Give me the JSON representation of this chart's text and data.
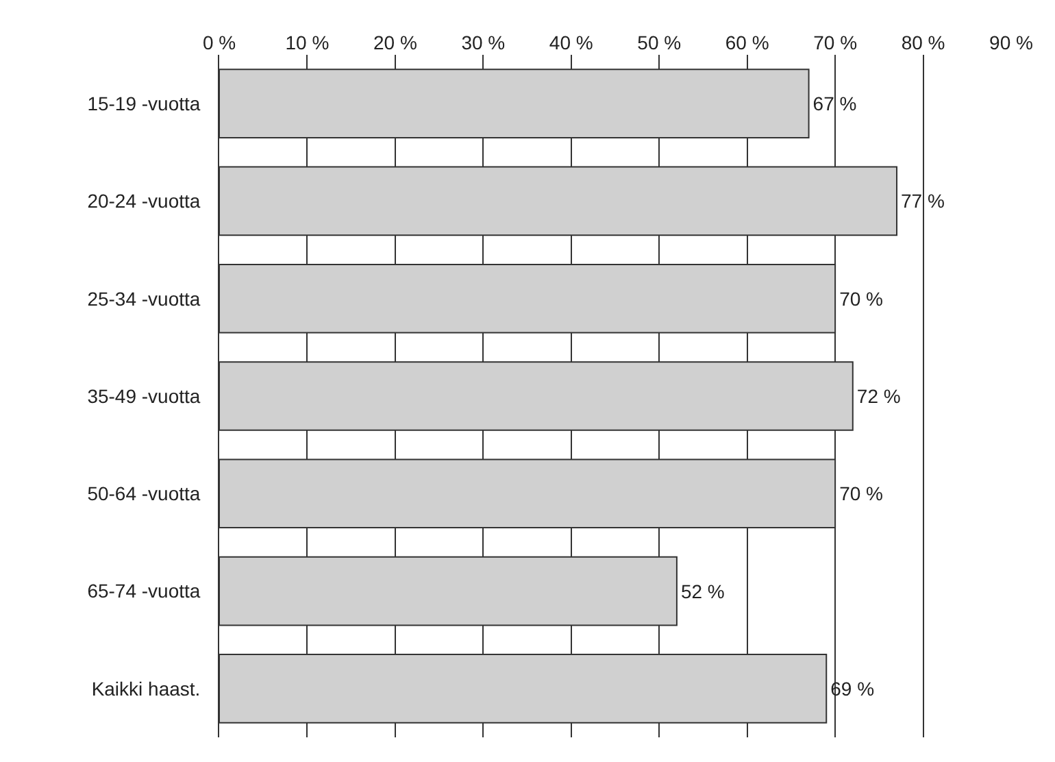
{
  "chart_data": {
    "type": "bar",
    "orientation": "horizontal",
    "categories": [
      "15-19 -vuotta",
      "20-24 -vuotta",
      "25-34 -vuotta",
      "35-49 -vuotta",
      "50-64 -vuotta",
      "65-74 -vuotta",
      "Kaikki haast."
    ],
    "values": [
      67,
      77,
      70,
      72,
      70,
      52,
      69
    ],
    "color": "#d0d0d0",
    "value_labels": [
      "67 %",
      "77 %",
      "70 %",
      "72 %",
      "70 %",
      "52 %",
      "69 %"
    ],
    "xlim": [
      0,
      90
    ],
    "xticks": [
      {
        "value": 0,
        "label": "0 %"
      },
      {
        "value": 10,
        "label": "10 %"
      },
      {
        "value": 20,
        "label": "20 %"
      },
      {
        "value": 30,
        "label": "30 %"
      },
      {
        "value": 40,
        "label": "40 %"
      },
      {
        "value": 50,
        "label": "50 %"
      },
      {
        "value": 60,
        "label": "60 %"
      },
      {
        "value": 70,
        "label": "70 %"
      },
      {
        "value": 80,
        "label": "80 %"
      },
      {
        "value": 90,
        "label": "90 %"
      }
    ],
    "grid": "x"
  }
}
